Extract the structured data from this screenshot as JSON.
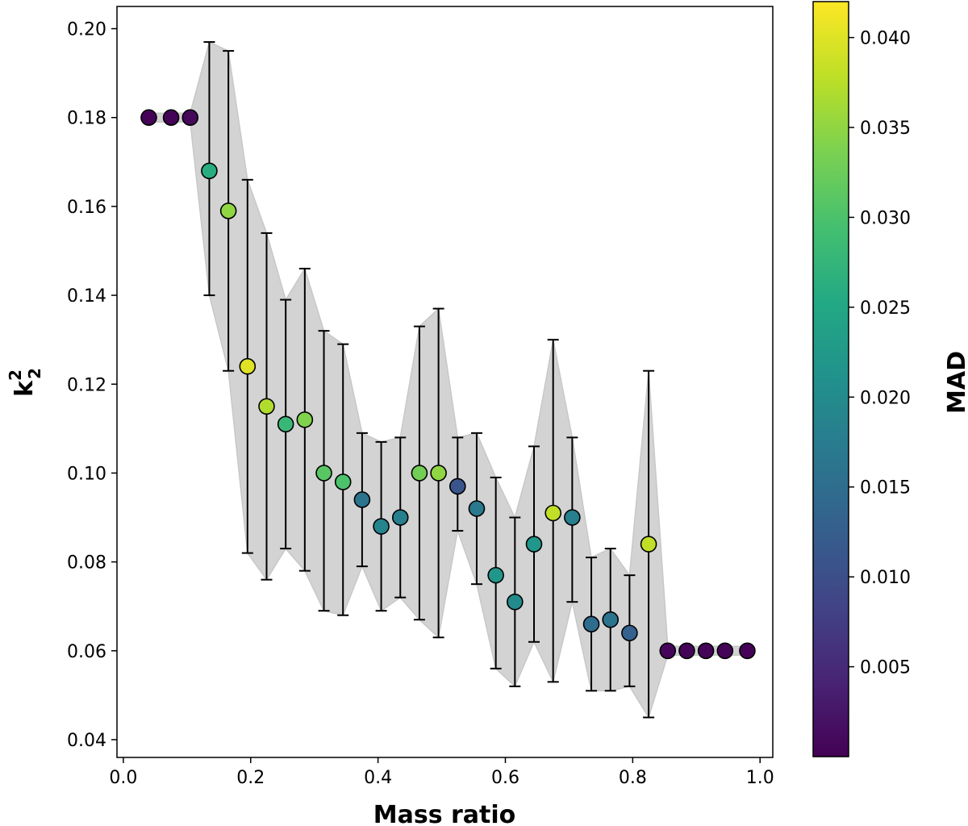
{
  "chart_data": {
    "type": "scatter",
    "title": "",
    "xlabel": "Mass ratio",
    "ylabel": "k",
    "ylabel_superscript": "2",
    "ylabel_subscript": "2",
    "xlim": [
      -0.01,
      1.02
    ],
    "ylim": [
      0.036,
      0.205
    ],
    "xticks": [
      0.0,
      0.2,
      0.4,
      0.6,
      0.8,
      1.0
    ],
    "xtick_labels": [
      "0.0",
      "0.2",
      "0.4",
      "0.6",
      "0.8",
      "1.0"
    ],
    "yticks": [
      0.04,
      0.06,
      0.08,
      0.1,
      0.12,
      0.14,
      0.16,
      0.18,
      0.2
    ],
    "ytick_labels": [
      "0.04",
      "0.06",
      "0.08",
      "0.10",
      "0.12",
      "0.14",
      "0.16",
      "0.18",
      "0.20"
    ],
    "grid": false,
    "band_color": "#d3d3d3",
    "errorbar_color": "#000000",
    "colormap": "viridis",
    "colorbar": {
      "label": "MAD",
      "range": [
        0.0,
        0.042
      ],
      "ticks": [
        0.005,
        0.01,
        0.015,
        0.02,
        0.025,
        0.03,
        0.035,
        0.04
      ],
      "tick_labels": [
        "0.005",
        "0.010",
        "0.015",
        "0.020",
        "0.025",
        "0.030",
        "0.035",
        "0.040"
      ]
    },
    "points": [
      {
        "x": 0.04,
        "y": 0.18,
        "lo": 0.179,
        "hi": 0.181,
        "mad": 0.0003
      },
      {
        "x": 0.075,
        "y": 0.18,
        "lo": 0.179,
        "hi": 0.181,
        "mad": 0.0003
      },
      {
        "x": 0.105,
        "y": 0.18,
        "lo": 0.179,
        "hi": 0.181,
        "mad": 0.0008
      },
      {
        "x": 0.135,
        "y": 0.168,
        "lo": 0.14,
        "hi": 0.197,
        "mad": 0.026
      },
      {
        "x": 0.165,
        "y": 0.159,
        "lo": 0.123,
        "hi": 0.195,
        "mad": 0.035
      },
      {
        "x": 0.195,
        "y": 0.124,
        "lo": 0.082,
        "hi": 0.166,
        "mad": 0.04
      },
      {
        "x": 0.225,
        "y": 0.115,
        "lo": 0.076,
        "hi": 0.154,
        "mad": 0.037
      },
      {
        "x": 0.255,
        "y": 0.111,
        "lo": 0.083,
        "hi": 0.139,
        "mad": 0.028
      },
      {
        "x": 0.285,
        "y": 0.112,
        "lo": 0.078,
        "hi": 0.146,
        "mad": 0.034
      },
      {
        "x": 0.315,
        "y": 0.1,
        "lo": 0.069,
        "hi": 0.132,
        "mad": 0.031
      },
      {
        "x": 0.345,
        "y": 0.098,
        "lo": 0.068,
        "hi": 0.129,
        "mad": 0.03
      },
      {
        "x": 0.375,
        "y": 0.094,
        "lo": 0.079,
        "hi": 0.109,
        "mad": 0.016
      },
      {
        "x": 0.405,
        "y": 0.088,
        "lo": 0.069,
        "hi": 0.107,
        "mad": 0.019
      },
      {
        "x": 0.435,
        "y": 0.09,
        "lo": 0.072,
        "hi": 0.108,
        "mad": 0.018
      },
      {
        "x": 0.465,
        "y": 0.1,
        "lo": 0.067,
        "hi": 0.133,
        "mad": 0.033
      },
      {
        "x": 0.495,
        "y": 0.1,
        "lo": 0.063,
        "hi": 0.137,
        "mad": 0.035
      },
      {
        "x": 0.525,
        "y": 0.097,
        "lo": 0.087,
        "hi": 0.108,
        "mad": 0.011
      },
      {
        "x": 0.555,
        "y": 0.092,
        "lo": 0.075,
        "hi": 0.109,
        "mad": 0.017
      },
      {
        "x": 0.585,
        "y": 0.077,
        "lo": 0.056,
        "hi": 0.099,
        "mad": 0.022
      },
      {
        "x": 0.615,
        "y": 0.071,
        "lo": 0.052,
        "hi": 0.09,
        "mad": 0.02
      },
      {
        "x": 0.645,
        "y": 0.084,
        "lo": 0.062,
        "hi": 0.106,
        "mad": 0.022
      },
      {
        "x": 0.675,
        "y": 0.091,
        "lo": 0.053,
        "hi": 0.13,
        "mad": 0.038
      },
      {
        "x": 0.705,
        "y": 0.09,
        "lo": 0.071,
        "hi": 0.108,
        "mad": 0.018
      },
      {
        "x": 0.735,
        "y": 0.066,
        "lo": 0.051,
        "hi": 0.081,
        "mad": 0.015
      },
      {
        "x": 0.765,
        "y": 0.067,
        "lo": 0.051,
        "hi": 0.083,
        "mad": 0.016
      },
      {
        "x": 0.795,
        "y": 0.064,
        "lo": 0.052,
        "hi": 0.077,
        "mad": 0.013
      },
      {
        "x": 0.825,
        "y": 0.084,
        "lo": 0.045,
        "hi": 0.123,
        "mad": 0.038
      },
      {
        "x": 0.855,
        "y": 0.06,
        "lo": 0.059,
        "hi": 0.061,
        "mad": 0.0006
      },
      {
        "x": 0.885,
        "y": 0.06,
        "lo": 0.059,
        "hi": 0.061,
        "mad": 0.0005
      },
      {
        "x": 0.915,
        "y": 0.06,
        "lo": 0.059,
        "hi": 0.061,
        "mad": 0.0004
      },
      {
        "x": 0.945,
        "y": 0.06,
        "lo": 0.059,
        "hi": 0.061,
        "mad": 0.0004
      },
      {
        "x": 0.98,
        "y": 0.06,
        "lo": 0.059,
        "hi": 0.061,
        "mad": 0.0003
      }
    ]
  }
}
